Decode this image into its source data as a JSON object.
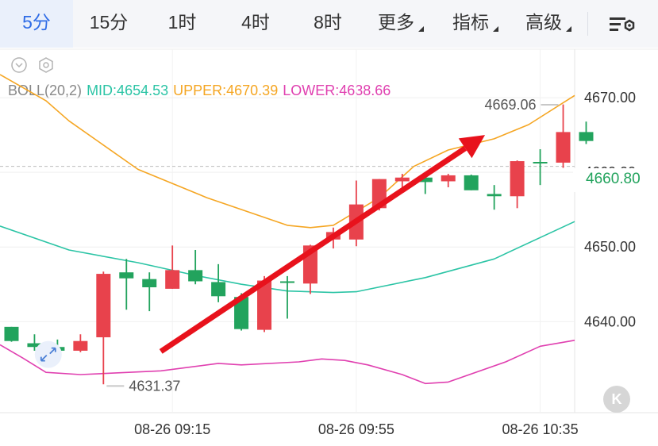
{
  "tabs": [
    {
      "label": "5分",
      "active": true
    },
    {
      "label": "15分",
      "active": false
    },
    {
      "label": "1时",
      "active": false
    },
    {
      "label": "4时",
      "active": false
    },
    {
      "label": "8时",
      "active": false
    },
    {
      "label": "更多",
      "active": false,
      "dropdown": true
    },
    {
      "label": "指标",
      "active": false,
      "dropdown": true
    },
    {
      "label": "高级",
      "active": false,
      "dropdown": true
    }
  ],
  "icons": {
    "settings": "chart-settings-icon",
    "collapse": "collapse-chevron-icon",
    "indicator_settings": "hexagon-settings-icon",
    "expand": "expand-arrows-icon",
    "k_button": "k-line-button"
  },
  "k_button_label": "K",
  "colors": {
    "up": "#e8424c",
    "down": "#22a35d",
    "upper_band": "#f5a623",
    "mid_band": "#2bc4a5",
    "lower_band": "#e040b0",
    "arrow": "#e8121c",
    "active_tab": "#2f6ce6"
  },
  "legend": {
    "name": "BOLL(20,2)",
    "mid": "MID:4654.53",
    "upper": "UPPER:4670.39",
    "lower": "LOWER:4638.66"
  },
  "current_price": "4660.80",
  "chart_data": {
    "type": "candlestick",
    "indicator": "BOLL(20,2)",
    "ylim": [
      4627.8,
      4676.5
    ],
    "y_ticks": [
      {
        "value": 4670.0,
        "label": "4670.00"
      },
      {
        "value": 4660.0,
        "label": "4660.00"
      },
      {
        "value": 4650.0,
        "label": "4650.00"
      },
      {
        "value": 4640.0,
        "label": "4640.00"
      }
    ],
    "x_ticks": [
      {
        "index": 7,
        "label": "08-26 09:15"
      },
      {
        "index": 15,
        "label": "08-26 09:55"
      },
      {
        "index": 23,
        "label": "08-26 10:35"
      }
    ],
    "visible_range": [
      -0.5,
      24.5
    ],
    "candles": [
      {
        "i": 0,
        "open": 4639.3,
        "high": 4639.3,
        "low": 4637.3,
        "close": 4637.4
      },
      {
        "i": 1,
        "open": 4637.1,
        "high": 4638.3,
        "low": 4636.1,
        "close": 4636.6
      },
      {
        "i": 2,
        "open": 4636.6,
        "high": 4637.6,
        "low": 4635.2,
        "close": 4636.1
      },
      {
        "i": 3,
        "open": 4636.1,
        "high": 4638.3,
        "low": 4635.9,
        "close": 4637.4
      },
      {
        "i": 4,
        "open": 4637.9,
        "high": 4646.7,
        "low": 4631.6,
        "close": 4646.4
      },
      {
        "i": 5,
        "open": 4646.6,
        "high": 4648.4,
        "low": 4641.6,
        "close": 4645.8
      },
      {
        "i": 6,
        "open": 4645.7,
        "high": 4646.6,
        "low": 4641.4,
        "close": 4644.6
      },
      {
        "i": 7,
        "open": 4644.4,
        "high": 4650.2,
        "low": 4644.4,
        "close": 4646.9
      },
      {
        "i": 8,
        "open": 4646.9,
        "high": 4649.6,
        "low": 4645.0,
        "close": 4645.4
      },
      {
        "i": 9,
        "open": 4645.3,
        "high": 4647.7,
        "low": 4642.6,
        "close": 4643.4
      },
      {
        "i": 10,
        "open": 4643.3,
        "high": 4643.8,
        "low": 4638.8,
        "close": 4639.0
      },
      {
        "i": 11,
        "open": 4638.9,
        "high": 4646.1,
        "low": 4638.6,
        "close": 4645.5
      },
      {
        "i": 12,
        "open": 4645.4,
        "high": 4646.1,
        "low": 4640.4,
        "close": 4645.2
      },
      {
        "i": 13,
        "open": 4645.1,
        "high": 4650.3,
        "low": 4643.7,
        "close": 4650.2
      },
      {
        "i": 14,
        "open": 4651.0,
        "high": 4652.6,
        "low": 4649.8,
        "close": 4652.0
      },
      {
        "i": 15,
        "open": 4651.0,
        "high": 4658.9,
        "low": 4650.1,
        "close": 4655.7
      },
      {
        "i": 16,
        "open": 4655.2,
        "high": 4659.1,
        "low": 4654.9,
        "close": 4659.1
      },
      {
        "i": 17,
        "open": 4658.8,
        "high": 4659.8,
        "low": 4657.8,
        "close": 4659.3
      },
      {
        "i": 18,
        "open": 4659.3,
        "high": 4659.5,
        "low": 4657.1,
        "close": 4658.7
      },
      {
        "i": 19,
        "open": 4658.8,
        "high": 4659.8,
        "low": 4658.0,
        "close": 4659.6
      },
      {
        "i": 20,
        "open": 4659.6,
        "high": 4659.7,
        "low": 4657.6,
        "close": 4657.6
      },
      {
        "i": 21,
        "open": 4657.1,
        "high": 4658.3,
        "low": 4655.0,
        "close": 4656.8
      },
      {
        "i": 22,
        "open": 4656.8,
        "high": 4661.6,
        "low": 4655.2,
        "close": 4661.5
      },
      {
        "i": 23,
        "open": 4661.4,
        "high": 4663.1,
        "low": 4658.3,
        "close": 4661.2
      },
      {
        "i": 24,
        "open": 4661.3,
        "high": 4669.1,
        "low": 4660.6,
        "close": 4665.4
      },
      {
        "i": 25,
        "open": 4665.4,
        "high": 4666.8,
        "low": 4663.8,
        "close": 4664.2
      }
    ],
    "series": [
      {
        "name": "UPPER",
        "points": [
          [
            -0.5,
            4673.1
          ],
          [
            1.5,
            4669.6
          ],
          [
            2.5,
            4666.9
          ],
          [
            5.5,
            4660.4
          ],
          [
            8.5,
            4656.6
          ],
          [
            12.0,
            4652.9
          ],
          [
            13.0,
            4652.6
          ],
          [
            14.0,
            4652.9
          ],
          [
            16.0,
            4656.6
          ],
          [
            17.5,
            4660.8
          ],
          [
            19.0,
            4663.0
          ],
          [
            21.0,
            4664.5
          ],
          [
            22.5,
            4666.4
          ],
          [
            24.5,
            4670.3
          ]
        ]
      },
      {
        "name": "MID",
        "points": [
          [
            -0.5,
            4652.8
          ],
          [
            2.5,
            4649.6
          ],
          [
            5.5,
            4647.9
          ],
          [
            8.0,
            4646.2
          ],
          [
            10.0,
            4645.0
          ],
          [
            12.0,
            4644.1
          ],
          [
            14.0,
            4643.9
          ],
          [
            15.0,
            4644.0
          ],
          [
            18.0,
            4645.9
          ],
          [
            21.0,
            4648.4
          ],
          [
            24.5,
            4653.4
          ]
        ]
      },
      {
        "name": "LOWER",
        "points": [
          [
            -0.5,
            4636.9
          ],
          [
            0.5,
            4635.1
          ],
          [
            1.5,
            4633.2
          ],
          [
            3.0,
            4632.9
          ],
          [
            6.5,
            4633.4
          ],
          [
            9.0,
            4634.4
          ],
          [
            10.0,
            4634.2
          ],
          [
            12.5,
            4634.6
          ],
          [
            13.5,
            4635.0
          ],
          [
            14.5,
            4634.8
          ],
          [
            15.5,
            4634.2
          ],
          [
            17.0,
            4632.9
          ],
          [
            18.0,
            4631.7
          ],
          [
            19.0,
            4631.9
          ],
          [
            21.5,
            4634.6
          ],
          [
            23.0,
            4636.7
          ],
          [
            24.5,
            4637.5
          ]
        ]
      }
    ],
    "annotations": [
      {
        "text": "4669.06",
        "candle": 24,
        "value": 4669.06,
        "side": "left"
      },
      {
        "text": "4631.37",
        "candle": 4,
        "value": 4631.37,
        "side": "right"
      }
    ],
    "arrow": {
      "from": [
        6.5,
        4636.0
      ],
      "to": [
        20.6,
        4665.0
      ]
    },
    "grid": true
  }
}
